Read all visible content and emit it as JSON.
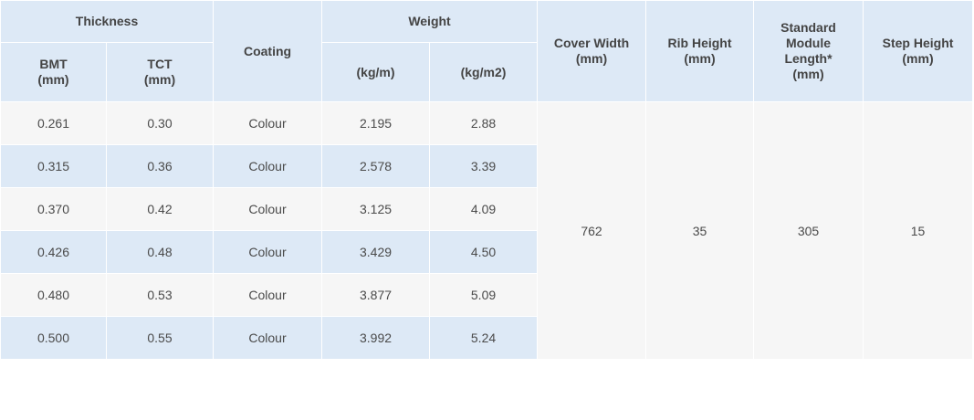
{
  "header": {
    "thickness": "Thickness",
    "coating": "Coating",
    "weight": "Weight",
    "cover_width": [
      "Cover Width",
      "(mm)"
    ],
    "rib_height": [
      "Rib Height",
      "(mm)"
    ],
    "module_length": [
      "Standard",
      "Module",
      "Length*",
      "(mm)"
    ],
    "step_height": [
      "Step Height",
      "(mm)"
    ],
    "bmt": [
      "BMT",
      "(mm)"
    ],
    "tct": [
      "TCT",
      "(mm)"
    ],
    "kg_m": "(kg/m)",
    "kg_m2": "(kg/m2)"
  },
  "rows": [
    {
      "bmt": "0.261",
      "tct": "0.30",
      "coating": "Colour",
      "kg_m": "2.195",
      "kg_m2": "2.88"
    },
    {
      "bmt": "0.315",
      "tct": "0.36",
      "coating": "Colour",
      "kg_m": "2.578",
      "kg_m2": "3.39"
    },
    {
      "bmt": "0.370",
      "tct": "0.42",
      "coating": "Colour",
      "kg_m": "3.125",
      "kg_m2": "4.09"
    },
    {
      "bmt": "0.426",
      "tct": "0.48",
      "coating": "Colour",
      "kg_m": "3.429",
      "kg_m2": "4.50"
    },
    {
      "bmt": "0.480",
      "tct": "0.53",
      "coating": "Colour",
      "kg_m": "3.877",
      "kg_m2": "5.09"
    },
    {
      "bmt": "0.500",
      "tct": "0.55",
      "coating": "Colour",
      "kg_m": "3.992",
      "kg_m2": "5.24"
    }
  ],
  "shared": {
    "cover_width": "762",
    "rib_height": "35",
    "module_length": "305",
    "step_height": "15"
  }
}
